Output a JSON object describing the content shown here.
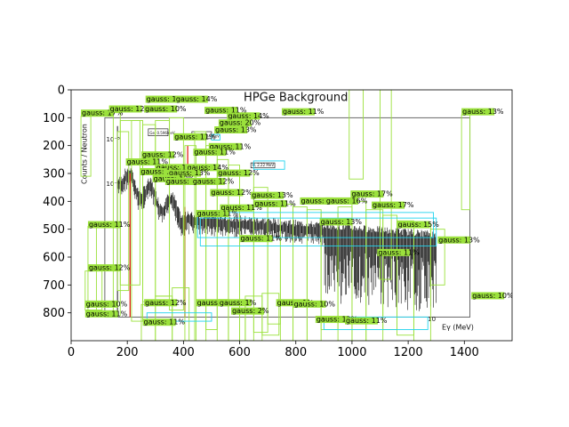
{
  "chart_data": {
    "type": "other",
    "title": "",
    "xlabel": "",
    "ylabel": "",
    "xlim": [
      0,
      1570
    ],
    "ylim": [
      900,
      0
    ],
    "y_inverted": true,
    "x_ticks": [
      0,
      200,
      400,
      600,
      800,
      1000,
      1200,
      1400
    ],
    "y_ticks": [
      0,
      100,
      200,
      300,
      400,
      500,
      600,
      700,
      800
    ],
    "x_tick_labels": [
      "0",
      "200",
      "400",
      "600",
      "800",
      "1000",
      "1200",
      "1400"
    ],
    "y_tick_labels": [
      "0",
      "100",
      "200",
      "300",
      "400",
      "500",
      "600",
      "700",
      "800"
    ],
    "grid": false,
    "background_image_text": {
      "title": "HPGe Background",
      "ylabel": "Counts / Neutron",
      "xlabel": "Eγ (MeV)",
      "tick_labels": [
        "10⁻⁵",
        "10⁻⁶",
        "10"
      ],
      "peak_labels": [
        "Ge, 0.596MeV",
        "Ge, 0.834 MeV",
        "H, 2.22 MeV"
      ]
    },
    "spectrum_region": {
      "x_range": [
        120,
        1420
      ],
      "y_range": [
        100,
        815
      ],
      "color": "#000000"
    },
    "red_lines": [
      {
        "x": 210,
        "y_top": 300,
        "y_bottom": 815
      },
      {
        "x": 405,
        "y_top": 420,
        "y_bottom": 815
      },
      {
        "x": 415,
        "y_top": 200,
        "y_bottom": 280
      }
    ],
    "cyan_boxes": [
      {
        "x0": 450,
        "y0": 440,
        "x1": 1290,
        "y1": 530
      },
      {
        "x0": 460,
        "y0": 460,
        "x1": 1300,
        "y1": 560
      },
      {
        "x0": 650,
        "y0": 255,
        "x1": 760,
        "y1": 285
      },
      {
        "x0": 500,
        "y0": 160,
        "x1": 530,
        "y1": 180
      },
      {
        "x0": 270,
        "y0": 800,
        "x1": 500,
        "y1": 830
      },
      {
        "x0": 900,
        "y0": 815,
        "x1": 1270,
        "y1": 860
      }
    ],
    "green_labels": [
      {
        "text": "gauss: 17%",
        "x": 35,
        "y": 90
      },
      {
        "text": "gauss: 12%",
        "x": 135,
        "y": 75
      },
      {
        "text": "gauss: 10%",
        "x": 260,
        "y": 75
      },
      {
        "text": "gauss: 15%",
        "x": 265,
        "y": 40
      },
      {
        "text": "gauss: 14%",
        "x": 370,
        "y": 40
      },
      {
        "text": "gauss: 11%",
        "x": 475,
        "y": 80
      },
      {
        "text": "gauss: 14%",
        "x": 555,
        "y": 100
      },
      {
        "text": "gauss: 20%",
        "x": 525,
        "y": 125
      },
      {
        "text": "gauss: 13%",
        "x": 510,
        "y": 150
      },
      {
        "text": "gauss: 11%",
        "x": 365,
        "y": 175
      },
      {
        "text": "gauss: 11%",
        "x": 490,
        "y": 210
      },
      {
        "text": "gauss: 11%",
        "x": 435,
        "y": 230
      },
      {
        "text": "gauss: 12%",
        "x": 250,
        "y": 240
      },
      {
        "text": "gauss: 11%",
        "x": 195,
        "y": 265
      },
      {
        "text": "gauss: 13%",
        "x": 300,
        "y": 285
      },
      {
        "text": "gauss: 14%",
        "x": 410,
        "y": 285
      },
      {
        "text": "gauss: 12%",
        "x": 520,
        "y": 305
      },
      {
        "text": "gauss: 13%",
        "x": 245,
        "y": 300
      },
      {
        "text": "gauss: 13%",
        "x": 345,
        "y": 305
      },
      {
        "text": "gauss: 12%",
        "x": 290,
        "y": 325
      },
      {
        "text": "gauss: 15%",
        "x": 335,
        "y": 335
      },
      {
        "text": "gauss: 12%",
        "x": 430,
        "y": 335
      },
      {
        "text": "gauss: 12%",
        "x": 495,
        "y": 375
      },
      {
        "text": "gauss: 13%",
        "x": 640,
        "y": 385
      },
      {
        "text": "gauss: 11%",
        "x": 530,
        "y": 430
      },
      {
        "text": "gauss: 11%",
        "x": 650,
        "y": 415
      },
      {
        "text": "gauss: 11%",
        "x": 445,
        "y": 450
      },
      {
        "text": "gauss: 12%",
        "x": 815,
        "y": 405
      },
      {
        "text": "gauss: 16%",
        "x": 905,
        "y": 405
      },
      {
        "text": "gauss: 17%",
        "x": 995,
        "y": 380
      },
      {
        "text": "gauss: 17%",
        "x": 1070,
        "y": 420
      },
      {
        "text": "gauss: 13%",
        "x": 885,
        "y": 480
      },
      {
        "text": "gauss: 15%",
        "x": 1160,
        "y": 490
      },
      {
        "text": "gauss: 13%",
        "x": 1305,
        "y": 545
      },
      {
        "text": "gauss: 11%",
        "x": 1090,
        "y": 590
      },
      {
        "text": "gauss: 13%",
        "x": 1390,
        "y": 85
      },
      {
        "text": "gauss: 11%",
        "x": 750,
        "y": 85
      },
      {
        "text": "gauss: 11%",
        "x": 600,
        "y": 540
      },
      {
        "text": "gauss: 11%",
        "x": 60,
        "y": 490
      },
      {
        "text": "gauss: 12%",
        "x": 60,
        "y": 645
      },
      {
        "text": "gauss: 10%",
        "x": 50,
        "y": 775
      },
      {
        "text": "gauss: 11%",
        "x": 50,
        "y": 810
      },
      {
        "text": "gauss: 12%",
        "x": 260,
        "y": 770
      },
      {
        "text": "gauss: 12%",
        "x": 445,
        "y": 770
      },
      {
        "text": "gauss: 1%",
        "x": 525,
        "y": 770
      },
      {
        "text": "gauss: 2%",
        "x": 570,
        "y": 800
      },
      {
        "text": "gauss: 1%",
        "x": 730,
        "y": 770
      },
      {
        "text": "gauss: 10%",
        "x": 790,
        "y": 775
      },
      {
        "text": "gauss: 11%",
        "x": 255,
        "y": 840
      },
      {
        "text": "gauss: 13%",
        "x": 870,
        "y": 830
      },
      {
        "text": "gauss: 11%",
        "x": 975,
        "y": 835
      },
      {
        "text": "gauss: 10%",
        "x": 1425,
        "y": 745
      }
    ],
    "green_boxes": [
      [
        35,
        95,
        70,
        310
      ],
      [
        150,
        82,
        175,
        810
      ],
      [
        165,
        150,
        205,
        720
      ],
      [
        175,
        110,
        245,
        700
      ],
      [
        215,
        110,
        255,
        830
      ],
      [
        255,
        125,
        300,
        760
      ],
      [
        300,
        110,
        350,
        740
      ],
      [
        350,
        100,
        400,
        790
      ],
      [
        405,
        200,
        445,
        900
      ],
      [
        440,
        150,
        480,
        900
      ],
      [
        480,
        200,
        520,
        860
      ],
      [
        520,
        250,
        560,
        900
      ],
      [
        560,
        270,
        600,
        900
      ],
      [
        600,
        300,
        650,
        900
      ],
      [
        650,
        350,
        700,
        870
      ],
      [
        700,
        400,
        745,
        840
      ],
      [
        745,
        410,
        790,
        900
      ],
      [
        790,
        420,
        840,
        900
      ],
      [
        840,
        430,
        890,
        900
      ],
      [
        890,
        440,
        950,
        860
      ],
      [
        950,
        420,
        1000,
        900
      ],
      [
        1000,
        400,
        1050,
        900
      ],
      [
        1050,
        430,
        1110,
        900
      ],
      [
        1110,
        450,
        1160,
        860
      ],
      [
        1160,
        470,
        1220,
        880
      ],
      [
        1220,
        480,
        1280,
        900
      ],
      [
        1280,
        500,
        1330,
        700
      ],
      [
        1390,
        90,
        1420,
        430
      ],
      [
        990,
        0,
        1040,
        320
      ],
      [
        1100,
        0,
        1140,
        680
      ],
      [
        60,
        490,
        90,
        800
      ],
      [
        50,
        650,
        110,
        790
      ],
      [
        250,
        770,
        300,
        900
      ],
      [
        300,
        740,
        360,
        900
      ],
      [
        360,
        710,
        420,
        900
      ],
      [
        560,
        760,
        620,
        900
      ],
      [
        620,
        740,
        680,
        900
      ],
      [
        680,
        730,
        740,
        880
      ]
    ]
  }
}
